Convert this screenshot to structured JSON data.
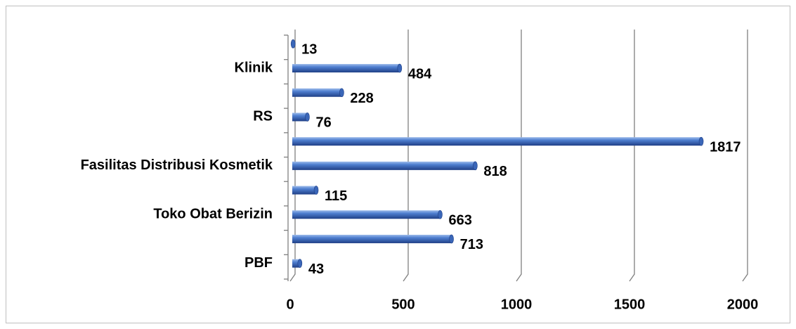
{
  "chart_data": {
    "type": "bar",
    "orientation": "horizontal",
    "categories": [
      "PBF",
      null,
      "Toko Obat Berizin",
      null,
      "Fasilitas Distribusi Kosmetik",
      null,
      "RS",
      null,
      "Klinik",
      null
    ],
    "values": [
      43,
      713,
      663,
      115,
      818,
      1817,
      76,
      228,
      484,
      13
    ],
    "color": "#4472c4",
    "xlim": [
      0,
      2000
    ],
    "xticks": [
      0,
      500,
      1000,
      1500,
      2000
    ],
    "grid": true
  }
}
